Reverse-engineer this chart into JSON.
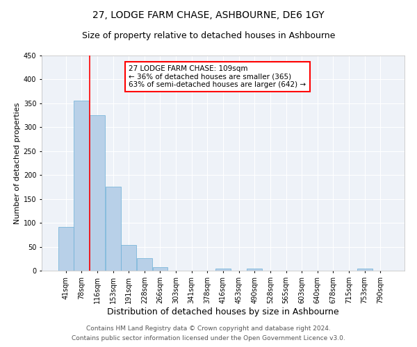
{
  "title": "27, LODGE FARM CHASE, ASHBOURNE, DE6 1GY",
  "subtitle": "Size of property relative to detached houses in Ashbourne",
  "xlabel": "Distribution of detached houses by size in Ashbourne",
  "ylabel": "Number of detached properties",
  "footnote1": "Contains HM Land Registry data © Crown copyright and database right 2024.",
  "footnote2": "Contains public sector information licensed under the Open Government Licence v3.0.",
  "categories": [
    "41sqm",
    "78sqm",
    "116sqm",
    "153sqm",
    "191sqm",
    "228sqm",
    "266sqm",
    "303sqm",
    "341sqm",
    "378sqm",
    "416sqm",
    "453sqm",
    "490sqm",
    "528sqm",
    "565sqm",
    "603sqm",
    "640sqm",
    "678sqm",
    "715sqm",
    "753sqm",
    "790sqm"
  ],
  "values": [
    91,
    355,
    325,
    175,
    53,
    26,
    7,
    0,
    0,
    0,
    4,
    0,
    4,
    0,
    0,
    0,
    0,
    0,
    0,
    4,
    0
  ],
  "bar_color": "#b8d0e8",
  "bar_edge_color": "#6aaed6",
  "red_line_bin": 2,
  "annotation_text": "27 LODGE FARM CHASE: 109sqm\n← 36% of detached houses are smaller (365)\n63% of semi-detached houses are larger (642) →",
  "annotation_box_color": "white",
  "annotation_box_edge": "red",
  "ylim": [
    0,
    450
  ],
  "yticks": [
    0,
    50,
    100,
    150,
    200,
    250,
    300,
    350,
    400,
    450
  ],
  "background_color": "#eef2f8",
  "grid_color": "white",
  "title_fontsize": 10,
  "subtitle_fontsize": 9,
  "xlabel_fontsize": 9,
  "ylabel_fontsize": 8,
  "tick_fontsize": 7,
  "annotation_fontsize": 7.5,
  "footnote_fontsize": 6.5
}
